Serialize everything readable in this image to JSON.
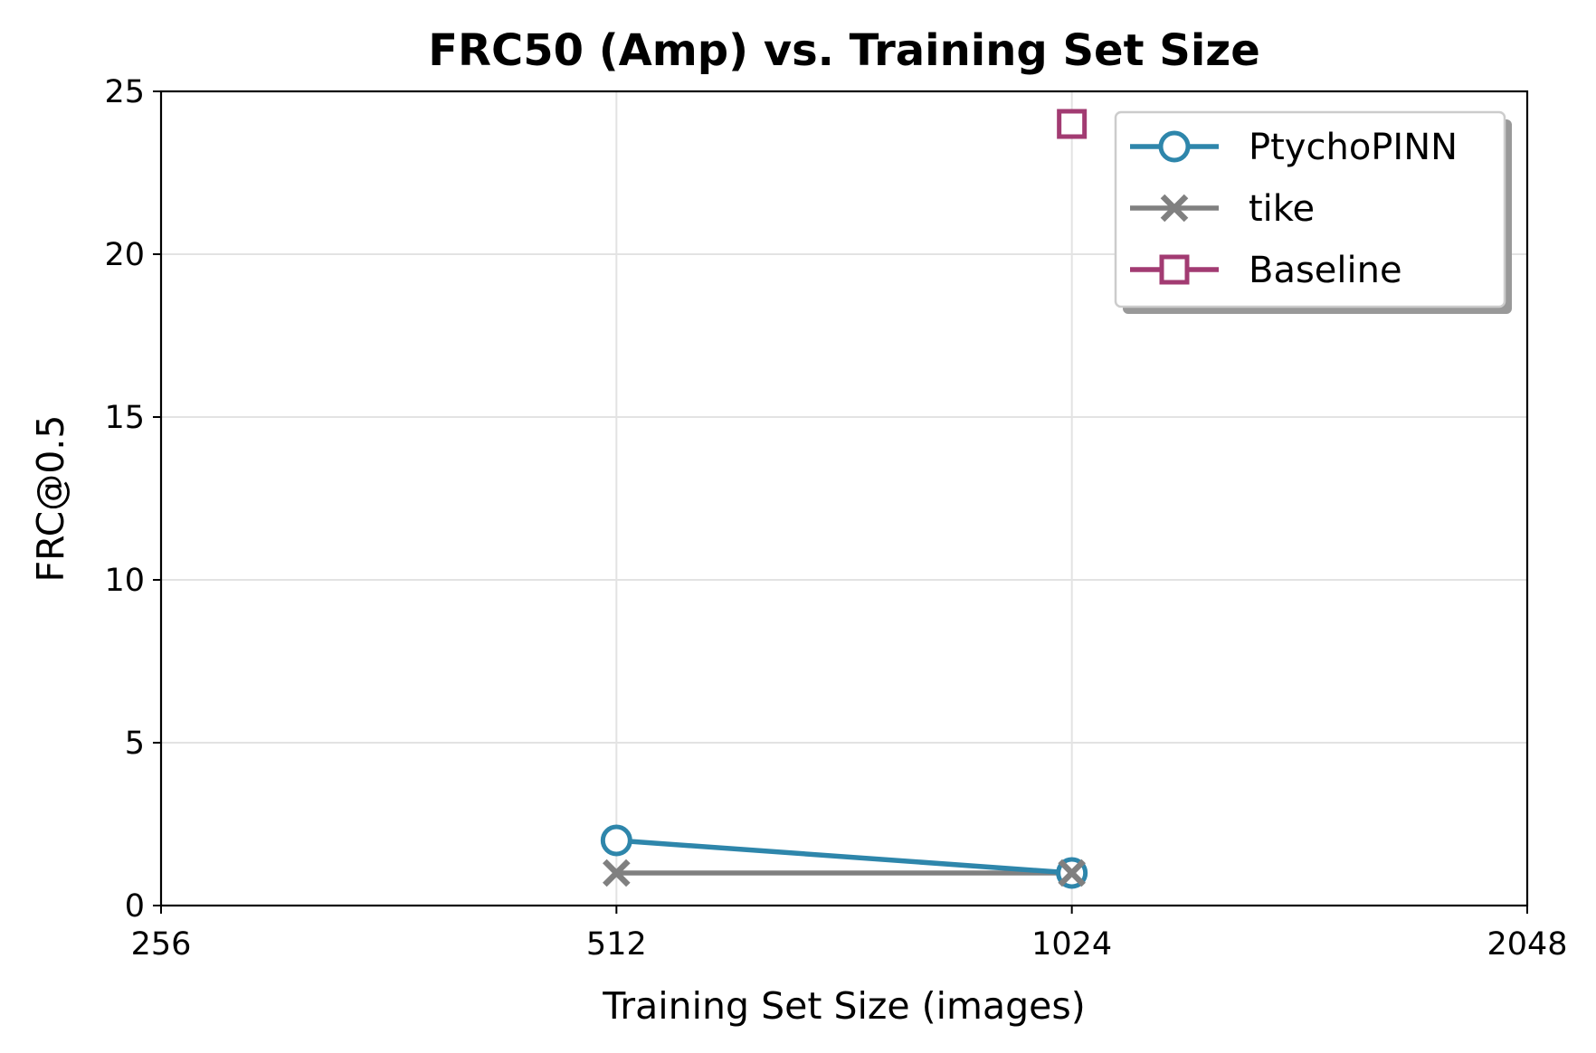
{
  "chart_data": {
    "type": "line",
    "title": "FRC50 (Amp) vs. Training Set Size",
    "xlabel": "Training Set Size (images)",
    "ylabel": "FRC@0.5",
    "x_scale": "log2",
    "xlim": [
      256,
      2048
    ],
    "ylim": [
      0,
      25
    ],
    "x_ticks": [
      "256",
      "512",
      "1024",
      "2048"
    ],
    "y_ticks": [
      "0",
      "5",
      "10",
      "15",
      "20",
      "25"
    ],
    "grid": true,
    "legend_position": "top-right",
    "series": [
      {
        "name": "PtychoPINN",
        "x": [
          512,
          1024
        ],
        "y": [
          2,
          1
        ],
        "color": "#2e86ab",
        "marker": "circle"
      },
      {
        "name": "tike",
        "x": [
          512,
          1024
        ],
        "y": [
          1,
          1
        ],
        "color": "#808080",
        "marker": "x"
      },
      {
        "name": "Baseline",
        "x": [
          1024
        ],
        "y": [
          24
        ],
        "color": "#a23b72",
        "marker": "square"
      }
    ]
  }
}
